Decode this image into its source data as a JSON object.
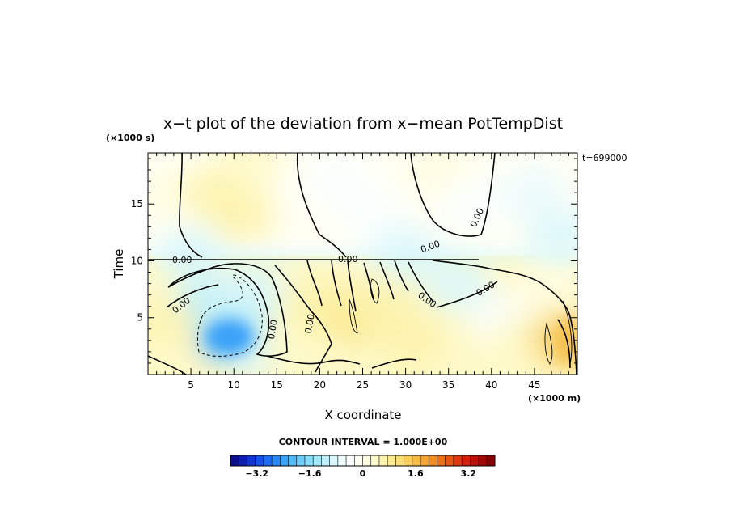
{
  "chart_data": {
    "type": "heatmap",
    "title": "x−t plot of the deviation from x−mean PotTempDist",
    "xlabel": "X coordinate",
    "ylabel": "Time",
    "x_unit": "(×1000 m)",
    "y_unit": "(×1000 s)",
    "time_stamp": "t=699000",
    "xlim": [
      0,
      50
    ],
    "ylim": [
      0,
      19.5
    ],
    "x_ticks": [
      "5",
      "10",
      "15",
      "20",
      "25",
      "30",
      "35",
      "40",
      "45"
    ],
    "y_ticks": [
      "5",
      "10",
      "15"
    ],
    "contour_interval_text": "CONTOUR INTERVAL = 1.000E+00",
    "zero_contour_label": "0.00",
    "colorbar": {
      "range": [
        -4,
        4
      ],
      "tick_labels": [
        "−3.2",
        "−1.6",
        "0",
        "1.6",
        "3.2"
      ],
      "tick_values": [
        -3.2,
        -1.6,
        0,
        1.6,
        3.2
      ],
      "colors": [
        "#0a0f8c",
        "#0c1eb0",
        "#0f34cf",
        "#1650e6",
        "#1e6cf2",
        "#2a88f6",
        "#3aa2f8",
        "#52baf8",
        "#6ccdf8",
        "#88dcf8",
        "#a4e7f9",
        "#c0f0fb",
        "#d9f7fc",
        "#ecfbfd",
        "#fafefe",
        "#fffff4",
        "#fffde0",
        "#fef9c8",
        "#fdf3ae",
        "#fbea92",
        "#f9dd76",
        "#f7cd5c",
        "#f5ba44",
        "#f3a430",
        "#f08c22",
        "#ec7018",
        "#e65412",
        "#de380e",
        "#d0200c",
        "#bc100a",
        "#a00808",
        "#840404"
      ]
    },
    "field_points": [
      {
        "x": 3,
        "y": 16,
        "v": 0.2
      },
      {
        "x": 8,
        "y": 16,
        "v": 0.5
      },
      {
        "x": 11,
        "y": 14,
        "v": 0.5
      },
      {
        "x": 12,
        "y": 19,
        "v": 0.3
      },
      {
        "x": 22,
        "y": 17,
        "v": -0.3
      },
      {
        "x": 26,
        "y": 14,
        "v": -0.4
      },
      {
        "x": 34,
        "y": 18,
        "v": 0.1
      },
      {
        "x": 38,
        "y": 15,
        "v": -0.5
      },
      {
        "x": 45,
        "y": 16,
        "v": -0.6
      },
      {
        "x": 48,
        "y": 12,
        "v": -0.8
      },
      {
        "x": 5,
        "y": 10.5,
        "v": -0.9
      },
      {
        "x": 30,
        "y": 10.6,
        "v": -1.0
      },
      {
        "x": 9.5,
        "y": 3.3,
        "v": -2.2
      },
      {
        "x": 10,
        "y": 5,
        "v": -1.6
      },
      {
        "x": 7,
        "y": 6,
        "v": -1.1
      },
      {
        "x": 12,
        "y": 7.5,
        "v": -1.0
      },
      {
        "x": 13,
        "y": 2,
        "v": -0.8
      },
      {
        "x": 2,
        "y": 4,
        "v": 0.6
      },
      {
        "x": 2,
        "y": 1,
        "v": 0.4
      },
      {
        "x": 17,
        "y": 2,
        "v": 0.3
      },
      {
        "x": 20,
        "y": 6,
        "v": 0.6
      },
      {
        "x": 24,
        "y": 5,
        "v": 0.9
      },
      {
        "x": 28,
        "y": 6,
        "v": 0.7
      },
      {
        "x": 31,
        "y": 3,
        "v": 0.5
      },
      {
        "x": 36,
        "y": 8,
        "v": -0.8
      },
      {
        "x": 41,
        "y": 5,
        "v": -0.5
      },
      {
        "x": 44,
        "y": 3,
        "v": 0.4
      },
      {
        "x": 48.5,
        "y": 3,
        "v": 1.3
      },
      {
        "x": 47,
        "y": 8,
        "v": 0.2
      }
    ]
  }
}
